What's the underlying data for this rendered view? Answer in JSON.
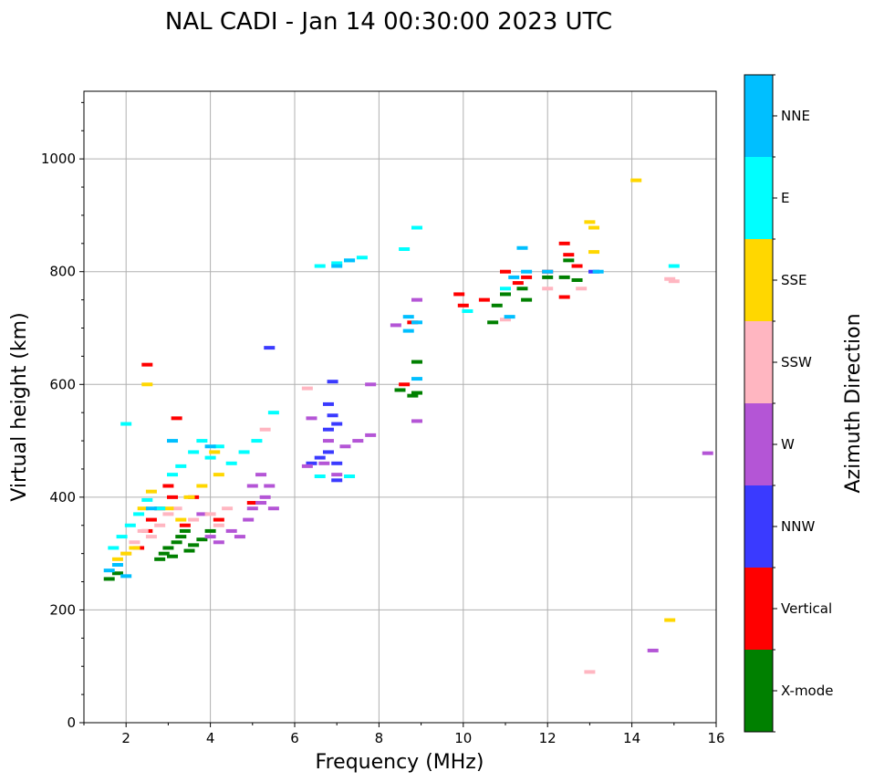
{
  "chart_data": {
    "type": "scatter",
    "title": "NAL CADI - Jan 14 00:30:00 2023 UTC",
    "xlabel": "Frequency (MHz)",
    "ylabel": "Virtual height (km)",
    "xlim": [
      1,
      16
    ],
    "ylim": [
      0,
      1120
    ],
    "xticks": [
      2,
      4,
      6,
      8,
      10,
      12,
      14,
      16
    ],
    "yticks": [
      0,
      200,
      400,
      600,
      800,
      1000
    ],
    "grid": true,
    "colorbar": {
      "label": "Azimuth Direction",
      "categories": [
        {
          "name": "X-mode",
          "color": "#008000"
        },
        {
          "name": "Vertical",
          "color": "#ff0000"
        },
        {
          "name": "NNW",
          "color": "#3a3aff"
        },
        {
          "name": "W",
          "color": "#b455d6"
        },
        {
          "name": "SSW",
          "color": "#ffb6c1"
        },
        {
          "name": "SSE",
          "color": "#ffd700"
        },
        {
          "name": "E",
          "color": "#00ffff"
        },
        {
          "name": "NNE",
          "color": "#00bfff"
        }
      ]
    },
    "series": [
      {
        "name": "X-mode",
        "points": [
          [
            1.6,
            255
          ],
          [
            1.8,
            265
          ],
          [
            2.8,
            290
          ],
          [
            2.9,
            300
          ],
          [
            3.0,
            310
          ],
          [
            3.1,
            295
          ],
          [
            3.2,
            320
          ],
          [
            3.3,
            330
          ],
          [
            3.4,
            340
          ],
          [
            3.5,
            305
          ],
          [
            3.6,
            315
          ],
          [
            3.8,
            325
          ],
          [
            4.0,
            340
          ],
          [
            8.5,
            590
          ],
          [
            8.8,
            580
          ],
          [
            8.9,
            640
          ],
          [
            8.9,
            585
          ],
          [
            10.7,
            710
          ],
          [
            10.8,
            740
          ],
          [
            11.0,
            760
          ],
          [
            11.4,
            770
          ],
          [
            11.5,
            750
          ],
          [
            12.0,
            790
          ],
          [
            12.4,
            790
          ],
          [
            12.5,
            820
          ],
          [
            12.7,
            785
          ]
        ]
      },
      {
        "name": "Vertical",
        "points": [
          [
            2.3,
            310
          ],
          [
            2.5,
            340
          ],
          [
            2.6,
            360
          ],
          [
            2.8,
            380
          ],
          [
            3.0,
            420
          ],
          [
            3.1,
            400
          ],
          [
            3.2,
            540
          ],
          [
            3.4,
            350
          ],
          [
            3.6,
            400
          ],
          [
            4.2,
            360
          ],
          [
            5.0,
            390
          ],
          [
            8.8,
            710
          ],
          [
            9.9,
            760
          ],
          [
            10.0,
            740
          ],
          [
            10.5,
            750
          ],
          [
            11.0,
            800
          ],
          [
            11.3,
            780
          ],
          [
            11.5,
            790
          ],
          [
            12.0,
            800
          ],
          [
            12.4,
            850
          ],
          [
            12.5,
            830
          ],
          [
            12.4,
            755
          ],
          [
            12.7,
            810
          ],
          [
            2.5,
            635
          ],
          [
            8.6,
            600
          ]
        ]
      },
      {
        "name": "NNW",
        "points": [
          [
            5.4,
            665
          ],
          [
            6.4,
            460
          ],
          [
            6.6,
            470
          ],
          [
            6.8,
            480
          ],
          [
            6.8,
            520
          ],
          [
            6.8,
            565
          ],
          [
            6.9,
            545
          ],
          [
            6.9,
            605
          ],
          [
            7.0,
            530
          ],
          [
            7.0,
            460
          ],
          [
            7.0,
            430
          ],
          [
            13.1,
            800
          ]
        ]
      },
      {
        "name": "W",
        "points": [
          [
            4.0,
            330
          ],
          [
            4.2,
            320
          ],
          [
            4.5,
            340
          ],
          [
            4.7,
            330
          ],
          [
            4.9,
            360
          ],
          [
            5.0,
            380
          ],
          [
            5.2,
            390
          ],
          [
            5.3,
            400
          ],
          [
            5.4,
            420
          ],
          [
            5.5,
            380
          ],
          [
            5.0,
            420
          ],
          [
            5.2,
            440
          ],
          [
            6.3,
            455
          ],
          [
            6.4,
            540
          ],
          [
            6.7,
            460
          ],
          [
            6.8,
            500
          ],
          [
            7.0,
            440
          ],
          [
            7.2,
            490
          ],
          [
            7.5,
            500
          ],
          [
            7.8,
            510
          ],
          [
            7.8,
            600
          ],
          [
            8.4,
            705
          ],
          [
            8.9,
            750
          ],
          [
            8.9,
            535
          ],
          [
            14.5,
            128
          ],
          [
            15.8,
            478
          ],
          [
            3.8,
            370
          ]
        ]
      },
      {
        "name": "SSW",
        "points": [
          [
            2.0,
            300
          ],
          [
            2.2,
            320
          ],
          [
            2.4,
            340
          ],
          [
            2.6,
            330
          ],
          [
            2.8,
            350
          ],
          [
            3.0,
            370
          ],
          [
            3.2,
            380
          ],
          [
            3.6,
            360
          ],
          [
            4.0,
            370
          ],
          [
            4.2,
            350
          ],
          [
            4.4,
            380
          ],
          [
            5.3,
            520
          ],
          [
            6.3,
            593
          ],
          [
            11.0,
            715
          ],
          [
            12.0,
            770
          ],
          [
            12.8,
            770
          ],
          [
            13.0,
            90
          ],
          [
            14.9,
            787
          ],
          [
            15.0,
            783
          ]
        ]
      },
      {
        "name": "SSE",
        "points": [
          [
            1.8,
            290
          ],
          [
            2.0,
            300
          ],
          [
            2.2,
            310
          ],
          [
            2.4,
            380
          ],
          [
            2.5,
            600
          ],
          [
            2.6,
            410
          ],
          [
            3.0,
            380
          ],
          [
            3.3,
            360
          ],
          [
            3.5,
            400
          ],
          [
            3.8,
            420
          ],
          [
            4.1,
            480
          ],
          [
            4.2,
            440
          ],
          [
            13.0,
            888
          ],
          [
            13.1,
            878
          ],
          [
            13.1,
            835
          ],
          [
            14.1,
            962
          ],
          [
            14.9,
            182
          ]
        ]
      },
      {
        "name": "E",
        "points": [
          [
            1.7,
            310
          ],
          [
            1.9,
            330
          ],
          [
            2.1,
            350
          ],
          [
            2.3,
            370
          ],
          [
            2.5,
            395
          ],
          [
            2.8,
            380
          ],
          [
            3.1,
            440
          ],
          [
            3.3,
            455
          ],
          [
            3.6,
            480
          ],
          [
            3.8,
            500
          ],
          [
            4.0,
            470
          ],
          [
            4.2,
            490
          ],
          [
            4.5,
            460
          ],
          [
            4.8,
            480
          ],
          [
            5.1,
            500
          ],
          [
            5.5,
            550
          ],
          [
            6.6,
            810
          ],
          [
            7.0,
            815
          ],
          [
            7.3,
            820
          ],
          [
            7.6,
            825
          ],
          [
            8.6,
            840
          ],
          [
            8.9,
            878
          ],
          [
            10.1,
            730
          ],
          [
            11.0,
            770
          ],
          [
            15.0,
            810
          ],
          [
            2.0,
            530
          ],
          [
            7.3,
            437
          ],
          [
            6.6,
            437
          ]
        ]
      },
      {
        "name": "NNE",
        "points": [
          [
            1.6,
            270
          ],
          [
            1.8,
            280
          ],
          [
            2.0,
            260
          ],
          [
            2.6,
            380
          ],
          [
            3.1,
            500
          ],
          [
            4.0,
            490
          ],
          [
            7.0,
            810
          ],
          [
            7.3,
            820
          ],
          [
            8.7,
            695
          ],
          [
            8.7,
            720
          ],
          [
            8.9,
            710
          ],
          [
            8.9,
            610
          ],
          [
            11.4,
            842
          ],
          [
            11.5,
            800
          ],
          [
            11.2,
            790
          ],
          [
            11.1,
            720
          ],
          [
            12.0,
            800
          ],
          [
            13.2,
            800
          ]
        ]
      }
    ]
  }
}
